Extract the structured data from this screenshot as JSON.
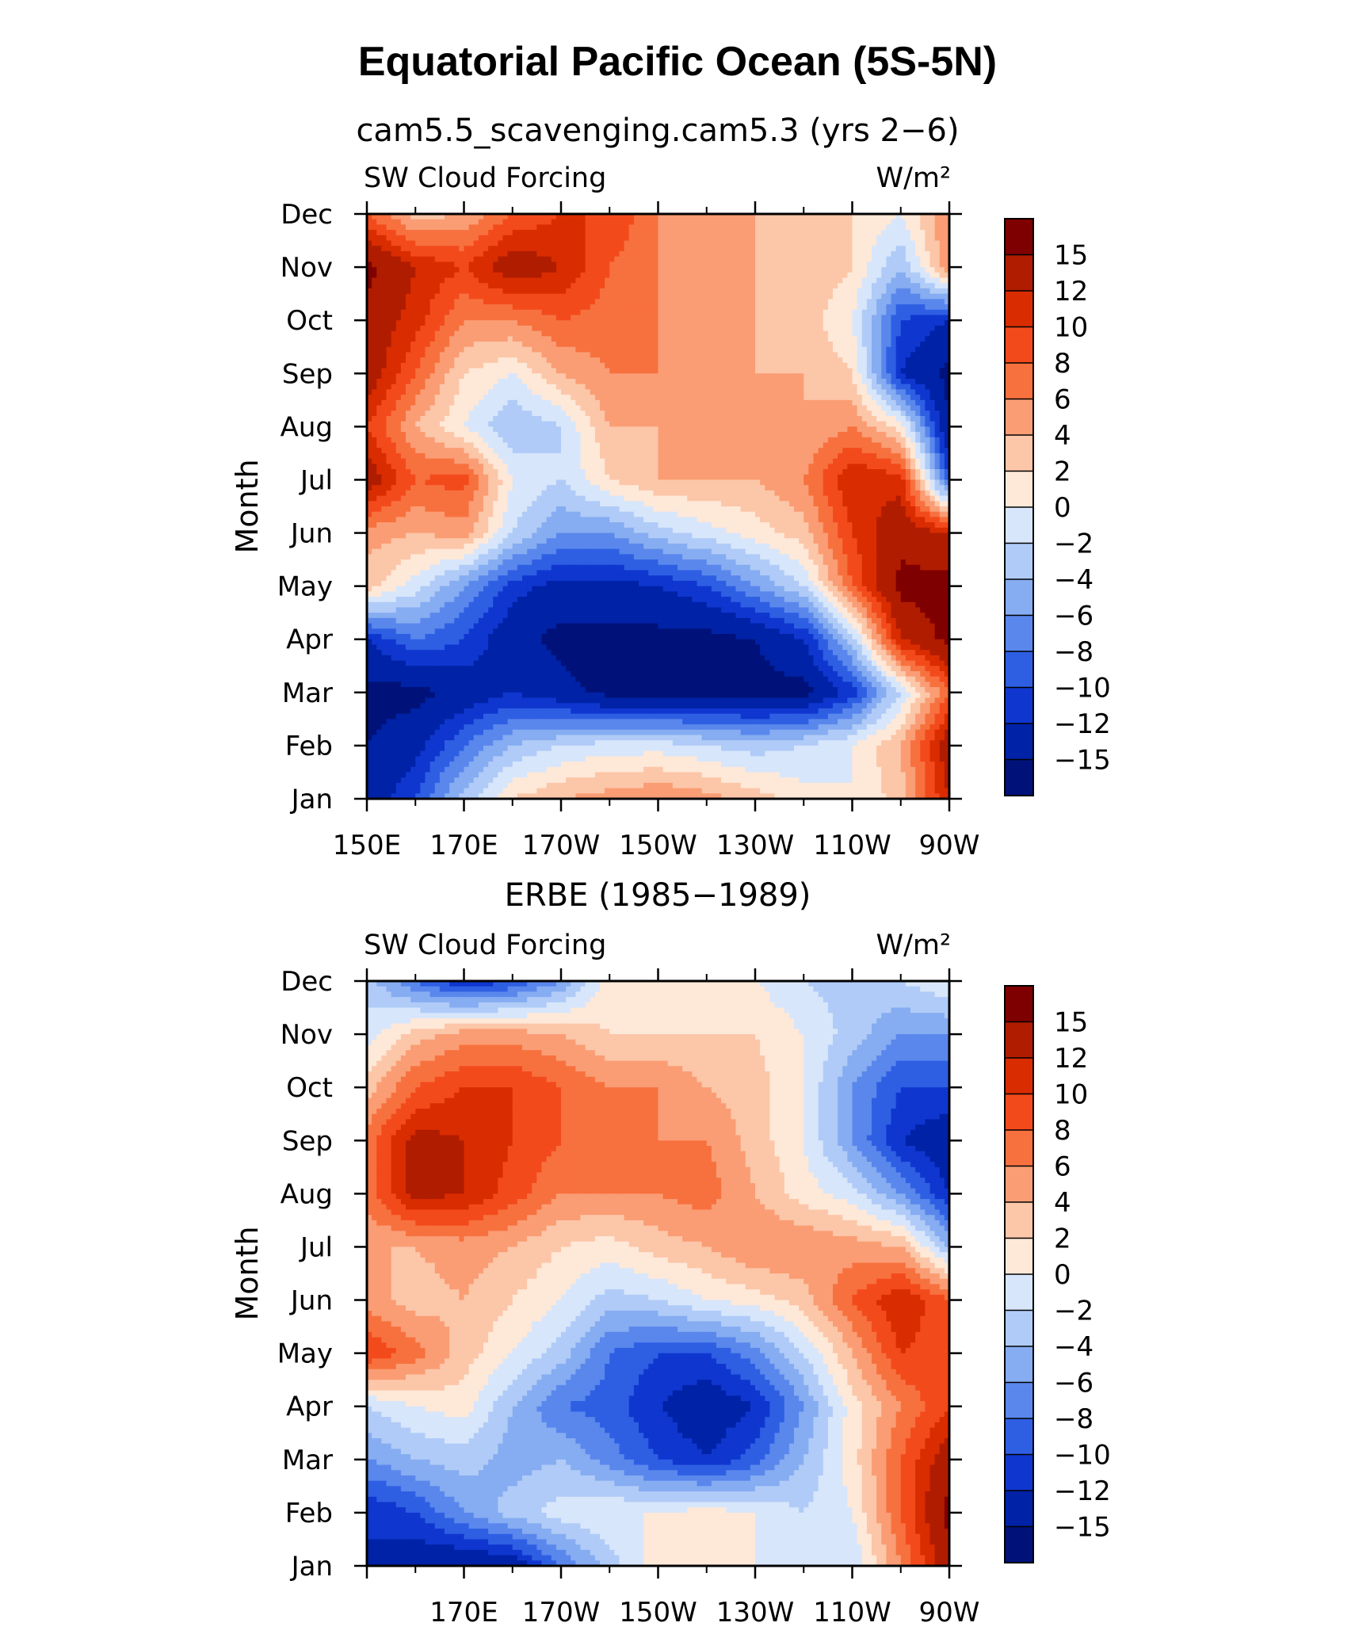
{
  "figure": {
    "title": "Equatorial Pacific Ocean (5S-5N)"
  },
  "chart_data": [
    {
      "type": "heatmap",
      "title": "cam5.5_scavenging.cam5.3 (yrs 2−6)",
      "left_label": "SW Cloud Forcing",
      "right_label": "W/m²",
      "xlabel": "",
      "ylabel": "Month",
      "x_ticks": [
        "150E",
        "170E",
        "170W",
        "150W",
        "130W",
        "110W",
        "90W"
      ],
      "y_ticks": [
        "Jan",
        "Feb",
        "Mar",
        "Apr",
        "May",
        "Jun",
        "Jul",
        "Aug",
        "Sep",
        "Oct",
        "Nov",
        "Dec"
      ],
      "lon_range": [
        150,
        270
      ],
      "colorbar": {
        "labels": [
          "15",
          "12",
          "10",
          "8",
          "6",
          "4",
          "2",
          "0",
          "−2",
          "−4",
          "−6",
          "−8",
          "−10",
          "−12",
          "−15"
        ],
        "colors": [
          "#7f0000",
          "#b01c00",
          "#d92c00",
          "#f34a1c",
          "#f7713f",
          "#fa9d74",
          "#fcc6a8",
          "#fee8d8",
          "#d7e6fb",
          "#b0cbf7",
          "#86acf1",
          "#5a87ec",
          "#2e5fe3",
          "#0f37cf",
          "#0022a6",
          "#00127a"
        ]
      },
      "lon_points": [
        150,
        160,
        170,
        180,
        190,
        200,
        210,
        220,
        230,
        240,
        250,
        260,
        270
      ],
      "values": [
        [
          -14,
          -10,
          -3,
          2,
          4,
          5,
          6,
          5,
          3,
          1,
          0,
          3,
          12
        ],
        [
          -15,
          -13,
          -8,
          -4,
          -2,
          -1,
          -1,
          -2,
          -3,
          -2,
          0,
          4,
          14
        ],
        [
          -16,
          -16,
          -14,
          -12,
          -14,
          -16,
          -16,
          -16,
          -16,
          -16,
          -11,
          -2,
          8
        ],
        [
          -12,
          -8,
          -10,
          -14,
          -16,
          -16,
          -16,
          -16,
          -15,
          -12,
          -3,
          12,
          16
        ],
        [
          3,
          -1,
          -6,
          -11,
          -13,
          -13,
          -12,
          -10,
          -6,
          -2,
          8,
          16,
          16
        ],
        [
          5,
          4,
          5,
          -2,
          -6,
          -6,
          -3,
          -1,
          1,
          3,
          10,
          14,
          12
        ],
        [
          14,
          8,
          9,
          0,
          -2,
          2,
          4,
          4,
          4,
          6,
          12,
          11,
          -10
        ],
        [
          10,
          4,
          0,
          -4,
          -2,
          4,
          4,
          4,
          4,
          4,
          6,
          1,
          -15
        ],
        [
          14,
          8,
          2,
          0,
          4,
          6,
          6,
          4,
          4,
          4,
          2,
          -12,
          -16
        ],
        [
          14,
          11,
          6,
          6,
          8,
          7,
          6,
          4,
          4,
          3,
          0,
          -10,
          -12
        ],
        [
          16,
          12,
          10,
          14,
          12,
          8,
          6,
          6,
          4,
          4,
          2,
          -4,
          6
        ],
        [
          8,
          3,
          4,
          8,
          10,
          10,
          6,
          4,
          4,
          3,
          2,
          0,
          6
        ]
      ]
    },
    {
      "type": "heatmap",
      "title": "ERBE (1985−1989)",
      "left_label": "SW Cloud Forcing",
      "right_label": "W/m²",
      "xlabel": "",
      "ylabel": "Month",
      "x_ticks": [
        "170E",
        "170W",
        "150W",
        "130W",
        "110W",
        "90W"
      ],
      "y_ticks": [
        "Jan",
        "Feb",
        "Mar",
        "Apr",
        "May",
        "Jun",
        "Jul",
        "Aug",
        "Sep",
        "Oct",
        "Nov",
        "Dec"
      ],
      "lon_range": [
        150,
        270
      ],
      "colorbar": {
        "labels": [
          "15",
          "12",
          "10",
          "8",
          "6",
          "4",
          "2",
          "0",
          "−2",
          "−4",
          "−6",
          "−8",
          "−10",
          "−12",
          "−15"
        ],
        "colors": [
          "#7f0000",
          "#b01c00",
          "#d92c00",
          "#f34a1c",
          "#f7713f",
          "#fa9d74",
          "#fcc6a8",
          "#fee8d8",
          "#d7e6fb",
          "#b0cbf7",
          "#86acf1",
          "#5a87ec",
          "#2e5fe3",
          "#0f37cf",
          "#0022a6",
          "#00127a"
        ]
      },
      "lon_points": [
        150,
        160,
        170,
        180,
        190,
        200,
        210,
        220,
        230,
        240,
        250,
        260,
        270
      ],
      "values": [
        [
          -12,
          -14,
          -15,
          -14,
          -8,
          -3,
          1,
          1,
          0,
          -2,
          -2,
          6,
          14
        ],
        [
          -12,
          -10,
          -6,
          -3,
          -1,
          0,
          0,
          1,
          0,
          -2,
          0,
          8,
          16
        ],
        [
          -6,
          -4,
          -3,
          -5,
          -4,
          -7,
          -10,
          -12,
          -9,
          -4,
          1,
          8,
          14
        ],
        [
          -2,
          0,
          1,
          -4,
          -8,
          -9,
          -12,
          -14,
          -12,
          -6,
          1,
          6,
          10
        ],
        [
          10,
          7,
          3,
          0,
          -3,
          -8,
          -10,
          -10,
          -7,
          -2,
          4,
          10,
          9
        ],
        [
          5,
          3,
          4,
          2,
          0,
          -3,
          -2,
          0,
          1,
          3,
          8,
          12,
          8
        ],
        [
          4,
          4,
          5,
          4,
          2,
          1,
          3,
          4,
          6,
          6,
          5,
          4,
          -4
        ],
        [
          7,
          13,
          12,
          9,
          6,
          6,
          6,
          7,
          4,
          1,
          -1,
          -6,
          -12
        ],
        [
          7,
          13,
          12,
          10,
          8,
          7,
          6,
          6,
          3,
          0,
          -6,
          -12,
          -14
        ],
        [
          3,
          8,
          10,
          10,
          8,
          6,
          6,
          4,
          3,
          0,
          -6,
          -10,
          -10
        ],
        [
          -1,
          3,
          5,
          5,
          4,
          2,
          2,
          2,
          2,
          0,
          -3,
          -6,
          -6
        ],
        [
          -3,
          -8,
          -12,
          -10,
          -6,
          1,
          1,
          1,
          0,
          -2,
          -3,
          -2,
          0
        ]
      ]
    }
  ]
}
